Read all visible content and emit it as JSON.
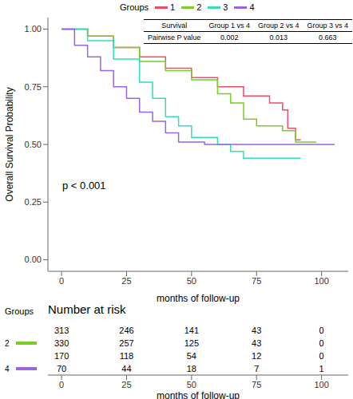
{
  "chart_data": {
    "type": "line",
    "line_style": "step",
    "legend": "top",
    "legend_title": "Groups",
    "grid": false,
    "x_label": "months of follow-up",
    "y_label": "Overall Survival Probability",
    "annotation": "p < 0.001",
    "xlim": [
      -5.25,
      110.25
    ],
    "xticks": [
      0,
      25,
      50,
      75,
      100
    ],
    "ylim": [
      -0.05,
      1.05
    ],
    "yticks": [
      {
        "value": 0,
        "label": "0.00"
      },
      {
        "value": 0.25,
        "label": "0.25"
      },
      {
        "value": 0.5,
        "label": "0.50"
      },
      {
        "value": 0.75,
        "label": "0.75"
      },
      {
        "value": 1,
        "label": "1.00"
      }
    ],
    "series": [
      {
        "name": "1",
        "color": "#ee4d6a",
        "x": [
          0,
          10,
          20,
          30,
          40,
          50,
          60,
          70,
          80,
          85,
          87,
          90,
          92
        ],
        "values": [
          1,
          0.97,
          0.92,
          0.88,
          0.83,
          0.79,
          0.75,
          0.71,
          0.68,
          0.65,
          0.57,
          0.52,
          0.52
        ],
        "at_risk": [
          313,
          246,
          141,
          43,
          0
        ]
      },
      {
        "name": "2",
        "color": "#7acc29",
        "x": [
          0,
          10,
          20,
          30,
          40,
          50,
          60,
          65,
          70,
          75,
          85,
          90,
          98
        ],
        "values": [
          1,
          0.97,
          0.92,
          0.86,
          0.82,
          0.78,
          0.72,
          0.68,
          0.61,
          0.58,
          0.56,
          0.51,
          0.51
        ],
        "at_risk": [
          330,
          257,
          125,
          43,
          0
        ]
      },
      {
        "name": "3",
        "color": "#33ddbb",
        "x": [
          0,
          10,
          20,
          30,
          35,
          40,
          45,
          50,
          60,
          65,
          70,
          92
        ],
        "values": [
          1,
          0.95,
          0.87,
          0.77,
          0.7,
          0.62,
          0.58,
          0.53,
          0.5,
          0.47,
          0.44,
          0.44
        ],
        "at_risk": [
          170,
          118,
          54,
          12,
          0
        ]
      },
      {
        "name": "4",
        "color": "#9966dd",
        "x": [
          0,
          5,
          10,
          15,
          20,
          25,
          30,
          35,
          40,
          45,
          55,
          105
        ],
        "values": [
          1,
          0.93,
          0.88,
          0.82,
          0.75,
          0.7,
          0.64,
          0.6,
          0.55,
          0.51,
          0.5,
          0.5
        ],
        "at_risk": [
          70,
          44,
          18,
          7,
          1
        ]
      }
    ],
    "pairwise_table": {
      "header": [
        "Survival",
        "Group 1 vs 4",
        "Group 2 vs 4",
        "Group 3 vs 4"
      ],
      "rows": [
        [
          "Pairwise P value",
          "0.002",
          "0.013",
          "0.663"
        ]
      ]
    },
    "risk_table": {
      "title": "Number at risk",
      "y_label": "Groups",
      "x_label": "months of follow-up",
      "x": [
        0,
        25,
        50,
        75,
        100
      ]
    }
  }
}
